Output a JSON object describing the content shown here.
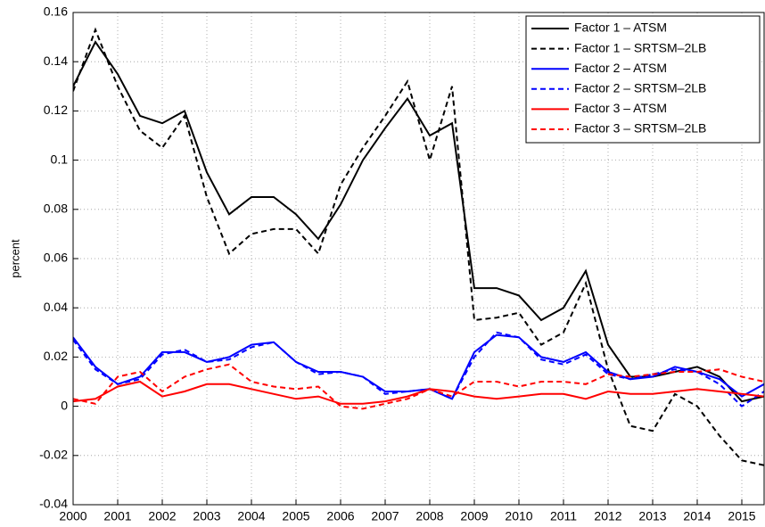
{
  "chart_data": {
    "type": "line",
    "ylabel": "percent",
    "x": [
      2000,
      2000.5,
      2001,
      2001.5,
      2002,
      2002.5,
      2003,
      2003.5,
      2004,
      2004.5,
      2005,
      2005.5,
      2006,
      2006.5,
      2007,
      2007.5,
      2008,
      2008.5,
      2009,
      2009.5,
      2010,
      2010.5,
      2011,
      2011.5,
      2012,
      2012.5,
      2013,
      2013.5,
      2014,
      2014.5,
      2015,
      2015.5
    ],
    "series": [
      {
        "name": "Factor 1 – ATSM",
        "color": "#000000",
        "style": "solid",
        "values": [
          0.13,
          0.148,
          0.135,
          0.118,
          0.115,
          0.12,
          0.095,
          0.078,
          0.085,
          0.085,
          0.078,
          0.068,
          0.082,
          0.1,
          0.113,
          0.125,
          0.11,
          0.115,
          0.048,
          0.048,
          0.045,
          0.035,
          0.04,
          0.055,
          0.025,
          0.012,
          0.012,
          0.014,
          0.016,
          0.012,
          0.002,
          0.004
        ]
      },
      {
        "name": "Factor 1 – SRTSM–2LB",
        "color": "#000000",
        "style": "dashed",
        "values": [
          0.128,
          0.153,
          0.13,
          0.112,
          0.105,
          0.118,
          0.085,
          0.062,
          0.07,
          0.072,
          0.072,
          0.062,
          0.09,
          0.105,
          0.118,
          0.132,
          0.1,
          0.13,
          0.035,
          0.036,
          0.038,
          0.025,
          0.03,
          0.05,
          0.015,
          -0.008,
          -0.01,
          0.005,
          0.0,
          -0.012,
          -0.022,
          -0.024
        ]
      },
      {
        "name": "Factor 2 – ATSM",
        "color": "#0000ff",
        "style": "solid",
        "values": [
          0.028,
          0.016,
          0.009,
          0.012,
          0.022,
          0.022,
          0.018,
          0.02,
          0.025,
          0.026,
          0.018,
          0.014,
          0.014,
          0.012,
          0.006,
          0.006,
          0.007,
          0.003,
          0.022,
          0.029,
          0.028,
          0.02,
          0.018,
          0.022,
          0.014,
          0.011,
          0.012,
          0.016,
          0.014,
          0.011,
          0.004,
          0.009
        ]
      },
      {
        "name": "Factor 2 – SRTSM–2LB",
        "color": "#0000ff",
        "style": "dashed",
        "values": [
          0.027,
          0.015,
          0.009,
          0.011,
          0.021,
          0.023,
          0.018,
          0.019,
          0.024,
          0.026,
          0.018,
          0.013,
          0.014,
          0.012,
          0.005,
          0.006,
          0.007,
          0.003,
          0.02,
          0.03,
          0.028,
          0.019,
          0.017,
          0.021,
          0.013,
          0.011,
          0.013,
          0.015,
          0.014,
          0.009,
          0.0,
          0.006
        ]
      },
      {
        "name": "Factor 3 – ATSM",
        "color": "#ff0000",
        "style": "solid",
        "values": [
          0.002,
          0.003,
          0.008,
          0.01,
          0.004,
          0.006,
          0.009,
          0.009,
          0.007,
          0.005,
          0.003,
          0.004,
          0.001,
          0.001,
          0.002,
          0.004,
          0.007,
          0.006,
          0.004,
          0.003,
          0.004,
          0.005,
          0.005,
          0.003,
          0.006,
          0.005,
          0.005,
          0.006,
          0.007,
          0.006,
          0.005,
          0.004
        ]
      },
      {
        "name": "Factor 3 – SRTSM–2LB",
        "color": "#ff0000",
        "style": "dashed",
        "values": [
          0.003,
          0.001,
          0.012,
          0.014,
          0.006,
          0.012,
          0.015,
          0.017,
          0.01,
          0.008,
          0.007,
          0.008,
          0.0,
          -0.001,
          0.001,
          0.003,
          0.007,
          0.004,
          0.01,
          0.01,
          0.008,
          0.01,
          0.01,
          0.009,
          0.013,
          0.012,
          0.013,
          0.014,
          0.014,
          0.015,
          0.012,
          0.01
        ]
      }
    ],
    "xlim": [
      2000,
      2015.5
    ],
    "xticks": [
      2000,
      2001,
      2002,
      2003,
      2004,
      2005,
      2006,
      2007,
      2008,
      2009,
      2010,
      2011,
      2012,
      2013,
      2014,
      2015
    ],
    "ylim": [
      -0.04,
      0.16
    ],
    "yticks": [
      -0.04,
      -0.02,
      0,
      0.02,
      0.04,
      0.06,
      0.08,
      0.1,
      0.12,
      0.14,
      0.16
    ],
    "grid": true,
    "legend": "upper right"
  }
}
